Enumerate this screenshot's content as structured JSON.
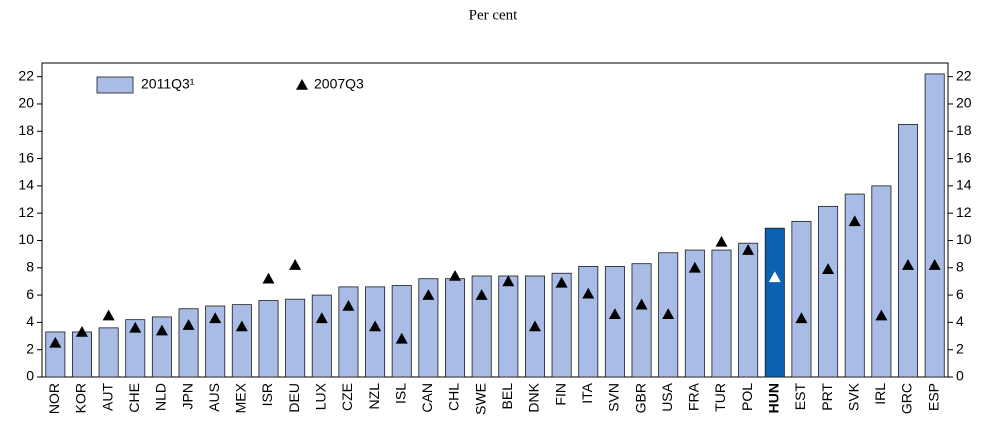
{
  "chart_data": {
    "type": "bar",
    "subtitle": "Per cent",
    "categories": [
      "NOR",
      "KOR",
      "AUT",
      "CHE",
      "NLD",
      "JPN",
      "AUS",
      "MEX",
      "ISR",
      "DEU",
      "LUX",
      "CZE",
      "NZL",
      "ISL",
      "CAN",
      "CHL",
      "SWE",
      "BEL",
      "DNK",
      "FIN",
      "ITA",
      "SVN",
      "GBR",
      "USA",
      "FRA",
      "TUR",
      "POL",
      "HUN",
      "EST",
      "PRT",
      "SVK",
      "IRL",
      "GRC",
      "ESP"
    ],
    "series": [
      {
        "name": "2011Q3¹",
        "kind": "bar",
        "color": "#a9bce6",
        "values": [
          3.3,
          3.3,
          3.6,
          4.2,
          4.4,
          5.0,
          5.2,
          5.3,
          5.6,
          5.7,
          6.0,
          6.6,
          6.6,
          6.7,
          7.2,
          7.2,
          7.4,
          7.4,
          7.4,
          7.6,
          8.1,
          8.1,
          8.3,
          9.1,
          9.3,
          9.3,
          9.8,
          10.9,
          11.4,
          12.5,
          13.4,
          14.0,
          18.5,
          22.2
        ]
      },
      {
        "name": "2007Q3",
        "kind": "marker",
        "color": "#000000",
        "values": [
          2.5,
          3.3,
          4.5,
          3.6,
          3.4,
          3.8,
          4.3,
          3.7,
          7.2,
          8.2,
          4.3,
          5.2,
          3.7,
          2.8,
          6.0,
          7.4,
          6.0,
          7.0,
          3.7,
          6.9,
          6.1,
          4.6,
          5.3,
          4.6,
          8.0,
          9.9,
          9.3,
          7.3,
          4.3,
          7.9,
          11.4,
          4.5,
          8.2,
          8.2
        ]
      }
    ],
    "highlight": {
      "category": "HUN",
      "bar_color": "#0b62b0",
      "marker_color": "#ffffff"
    },
    "ylim": [
      0,
      23
    ],
    "yticks": [
      0,
      2,
      4,
      6,
      8,
      10,
      12,
      14,
      16,
      18,
      20,
      22
    ],
    "y2lim": [
      0,
      23
    ],
    "y2ticks": [
      0,
      2,
      4,
      6,
      8,
      10,
      12,
      14,
      16,
      18,
      20,
      22
    ],
    "grid": false
  }
}
